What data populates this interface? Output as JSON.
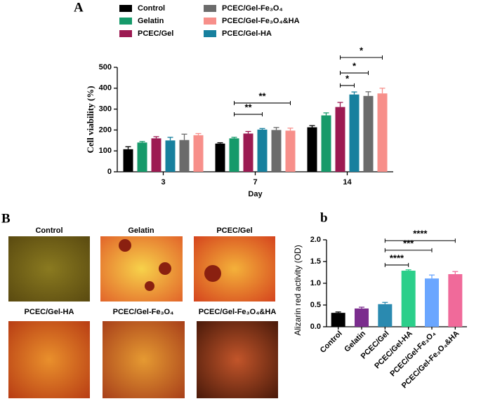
{
  "chart_data": [
    {
      "type": "bar",
      "panel": "A",
      "ylabel": "Cell viability (%)",
      "xlabel": "Day",
      "categories": [
        "3",
        "7",
        "14"
      ],
      "series": [
        {
          "name": "Control",
          "color": "#000000",
          "values": [
            108,
            135,
            213
          ],
          "errors": [
            12,
            4,
            8
          ]
        },
        {
          "name": "Gelatin",
          "color": "#169a6a",
          "values": [
            140,
            160,
            270
          ],
          "errors": [
            5,
            5,
            12
          ]
        },
        {
          "name": "PCEC/Gel",
          "color": "#9c1a52",
          "values": [
            160,
            183,
            310
          ],
          "errors": [
            8,
            10,
            22
          ]
        },
        {
          "name": "PCEC/Gel-HA",
          "color": "#17809e",
          "values": [
            150,
            202,
            370
          ],
          "errors": [
            15,
            5,
            12
          ]
        },
        {
          "name": "PCEC/Gel-Fe₃O₄",
          "color": "#6b6b6b",
          "values": [
            152,
            200,
            363
          ],
          "errors": [
            28,
            12,
            20
          ]
        },
        {
          "name": "PCEC/Gel-Fe₃O₄&HA",
          "color": "#f78f8a",
          "values": [
            175,
            197,
            375
          ],
          "errors": [
            8,
            12,
            25
          ]
        }
      ],
      "ylim": [
        0,
        500
      ],
      "yticks": [
        0,
        100,
        200,
        300,
        400,
        500
      ],
      "annotations": [
        {
          "text": "**",
          "group": "7",
          "from": "Gelatin",
          "to": "PCEC/Gel-HA",
          "y": 275
        },
        {
          "text": "**",
          "group": "7",
          "from": "Gelatin",
          "to": "PCEC/Gel-Fe₃O₄&HA",
          "y": 329
        },
        {
          "text": "*",
          "group": "14",
          "from": "PCEC/Gel",
          "to": "PCEC/Gel-HA",
          "y": 413
        },
        {
          "text": "*",
          "group": "14",
          "from": "PCEC/Gel",
          "to": "PCEC/Gel-Fe₃O₄",
          "y": 473
        },
        {
          "text": "*",
          "group": "14",
          "from": "PCEC/Gel",
          "to": "PCEC/Gel-Fe₃O₄&HA",
          "y": 547
        }
      ]
    },
    {
      "type": "bar",
      "panel": "b",
      "ylabel": "Alizarin red activity (OD)",
      "categories": [
        "Control",
        "Gelatin",
        "PCEC/Gel",
        "PCEC/Gel-HA",
        "PCEC/Gel-Fe₃O₄",
        "PCEC/Gel-Fe₃O₄&HA"
      ],
      "values": [
        0.32,
        0.42,
        0.52,
        1.29,
        1.11,
        1.21
      ],
      "errors": [
        0.02,
        0.03,
        0.04,
        0.02,
        0.08,
        0.06
      ],
      "colors": [
        "#000000",
        "#7b2d8e",
        "#2a8ab0",
        "#2bcf8a",
        "#6aa6ff",
        "#f06a9a"
      ],
      "ylim": [
        0,
        2
      ],
      "yticks": [
        {
          "value": 0,
          "label": "0.0"
        },
        {
          "value": 0.5,
          "label": "0.5"
        },
        {
          "value": 1,
          "label": "1.0"
        },
        {
          "value": 1.5,
          "label": "1.5"
        },
        {
          "value": 2,
          "label": "2.0"
        }
      ],
      "annotations": [
        {
          "text": "****",
          "from": "PCEC/Gel",
          "to": "PCEC/Gel-HA",
          "y": 1.42
        },
        {
          "text": "***",
          "from": "PCEC/Gel",
          "to": "PCEC/Gel-Fe₃O₄",
          "y": 1.76
        },
        {
          "text": "****",
          "from": "PCEC/Gel",
          "to": "PCEC/Gel-Fe₃O₄&HA",
          "y": 1.98
        }
      ]
    }
  ],
  "micrographs": {
    "panel": "B",
    "images": [
      "Control",
      "Gelatin",
      "PCEC/Gel",
      "PCEC/Gel-HA",
      "PCEC/Gel-Fe₃O₄",
      "PCEC/Gel-Fe₃O₄&HA"
    ]
  }
}
